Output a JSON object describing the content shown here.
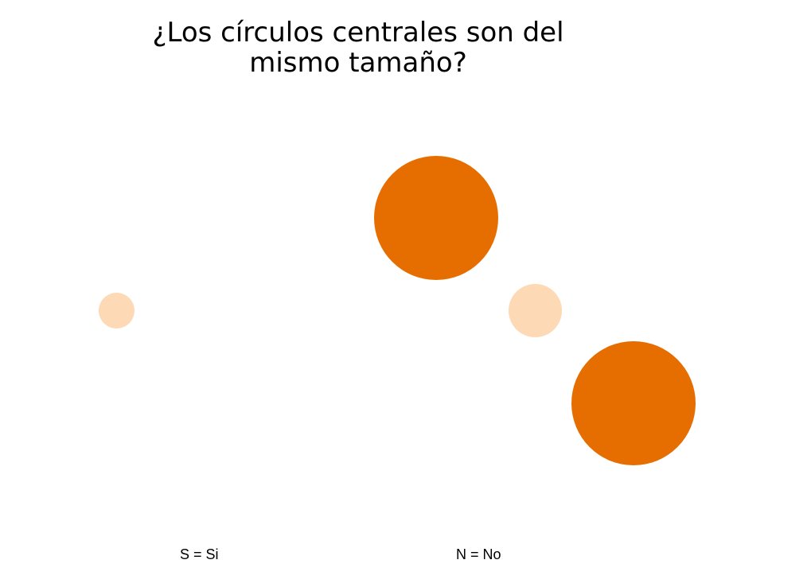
{
  "title": {
    "line1": "¿Los círculos centrales son del",
    "line2": "mismo tamaño?"
  },
  "answers": {
    "yes": "S = Si",
    "no": "N = No"
  },
  "colors": {
    "large_circle": "#E66E00",
    "small_circle": "#FDD9B5",
    "background": "#FFFFFF",
    "text": "#000000"
  },
  "circles": [
    {
      "name": "small-left",
      "kind": "small"
    },
    {
      "name": "big-top",
      "kind": "large"
    },
    {
      "name": "small-right",
      "kind": "small"
    },
    {
      "name": "big-bottom",
      "kind": "large"
    }
  ]
}
